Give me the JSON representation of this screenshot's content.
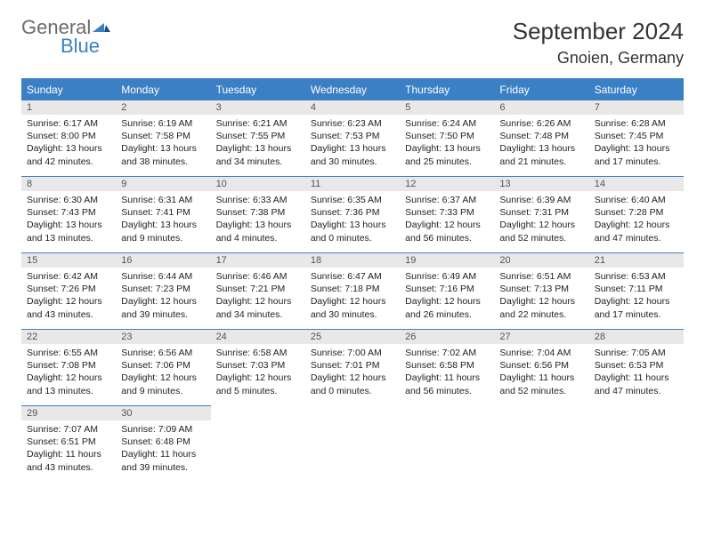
{
  "logo": {
    "general": "General",
    "blue": "Blue"
  },
  "title": "September 2024",
  "location": "Gnoien, Germany",
  "colors": {
    "accent": "#3b7fc4",
    "daynum_bg": "#e8e8e8",
    "text": "#222222"
  },
  "dayHeaders": [
    "Sunday",
    "Monday",
    "Tuesday",
    "Wednesday",
    "Thursday",
    "Friday",
    "Saturday"
  ],
  "days": [
    {
      "n": "1",
      "sunrise": "Sunrise: 6:17 AM",
      "sunset": "Sunset: 8:00 PM",
      "daylight": "Daylight: 13 hours and 42 minutes."
    },
    {
      "n": "2",
      "sunrise": "Sunrise: 6:19 AM",
      "sunset": "Sunset: 7:58 PM",
      "daylight": "Daylight: 13 hours and 38 minutes."
    },
    {
      "n": "3",
      "sunrise": "Sunrise: 6:21 AM",
      "sunset": "Sunset: 7:55 PM",
      "daylight": "Daylight: 13 hours and 34 minutes."
    },
    {
      "n": "4",
      "sunrise": "Sunrise: 6:23 AM",
      "sunset": "Sunset: 7:53 PM",
      "daylight": "Daylight: 13 hours and 30 minutes."
    },
    {
      "n": "5",
      "sunrise": "Sunrise: 6:24 AM",
      "sunset": "Sunset: 7:50 PM",
      "daylight": "Daylight: 13 hours and 25 minutes."
    },
    {
      "n": "6",
      "sunrise": "Sunrise: 6:26 AM",
      "sunset": "Sunset: 7:48 PM",
      "daylight": "Daylight: 13 hours and 21 minutes."
    },
    {
      "n": "7",
      "sunrise": "Sunrise: 6:28 AM",
      "sunset": "Sunset: 7:45 PM",
      "daylight": "Daylight: 13 hours and 17 minutes."
    },
    {
      "n": "8",
      "sunrise": "Sunrise: 6:30 AM",
      "sunset": "Sunset: 7:43 PM",
      "daylight": "Daylight: 13 hours and 13 minutes."
    },
    {
      "n": "9",
      "sunrise": "Sunrise: 6:31 AM",
      "sunset": "Sunset: 7:41 PM",
      "daylight": "Daylight: 13 hours and 9 minutes."
    },
    {
      "n": "10",
      "sunrise": "Sunrise: 6:33 AM",
      "sunset": "Sunset: 7:38 PM",
      "daylight": "Daylight: 13 hours and 4 minutes."
    },
    {
      "n": "11",
      "sunrise": "Sunrise: 6:35 AM",
      "sunset": "Sunset: 7:36 PM",
      "daylight": "Daylight: 13 hours and 0 minutes."
    },
    {
      "n": "12",
      "sunrise": "Sunrise: 6:37 AM",
      "sunset": "Sunset: 7:33 PM",
      "daylight": "Daylight: 12 hours and 56 minutes."
    },
    {
      "n": "13",
      "sunrise": "Sunrise: 6:39 AM",
      "sunset": "Sunset: 7:31 PM",
      "daylight": "Daylight: 12 hours and 52 minutes."
    },
    {
      "n": "14",
      "sunrise": "Sunrise: 6:40 AM",
      "sunset": "Sunset: 7:28 PM",
      "daylight": "Daylight: 12 hours and 47 minutes."
    },
    {
      "n": "15",
      "sunrise": "Sunrise: 6:42 AM",
      "sunset": "Sunset: 7:26 PM",
      "daylight": "Daylight: 12 hours and 43 minutes."
    },
    {
      "n": "16",
      "sunrise": "Sunrise: 6:44 AM",
      "sunset": "Sunset: 7:23 PM",
      "daylight": "Daylight: 12 hours and 39 minutes."
    },
    {
      "n": "17",
      "sunrise": "Sunrise: 6:46 AM",
      "sunset": "Sunset: 7:21 PM",
      "daylight": "Daylight: 12 hours and 34 minutes."
    },
    {
      "n": "18",
      "sunrise": "Sunrise: 6:47 AM",
      "sunset": "Sunset: 7:18 PM",
      "daylight": "Daylight: 12 hours and 30 minutes."
    },
    {
      "n": "19",
      "sunrise": "Sunrise: 6:49 AM",
      "sunset": "Sunset: 7:16 PM",
      "daylight": "Daylight: 12 hours and 26 minutes."
    },
    {
      "n": "20",
      "sunrise": "Sunrise: 6:51 AM",
      "sunset": "Sunset: 7:13 PM",
      "daylight": "Daylight: 12 hours and 22 minutes."
    },
    {
      "n": "21",
      "sunrise": "Sunrise: 6:53 AM",
      "sunset": "Sunset: 7:11 PM",
      "daylight": "Daylight: 12 hours and 17 minutes."
    },
    {
      "n": "22",
      "sunrise": "Sunrise: 6:55 AM",
      "sunset": "Sunset: 7:08 PM",
      "daylight": "Daylight: 12 hours and 13 minutes."
    },
    {
      "n": "23",
      "sunrise": "Sunrise: 6:56 AM",
      "sunset": "Sunset: 7:06 PM",
      "daylight": "Daylight: 12 hours and 9 minutes."
    },
    {
      "n": "24",
      "sunrise": "Sunrise: 6:58 AM",
      "sunset": "Sunset: 7:03 PM",
      "daylight": "Daylight: 12 hours and 5 minutes."
    },
    {
      "n": "25",
      "sunrise": "Sunrise: 7:00 AM",
      "sunset": "Sunset: 7:01 PM",
      "daylight": "Daylight: 12 hours and 0 minutes."
    },
    {
      "n": "26",
      "sunrise": "Sunrise: 7:02 AM",
      "sunset": "Sunset: 6:58 PM",
      "daylight": "Daylight: 11 hours and 56 minutes."
    },
    {
      "n": "27",
      "sunrise": "Sunrise: 7:04 AM",
      "sunset": "Sunset: 6:56 PM",
      "daylight": "Daylight: 11 hours and 52 minutes."
    },
    {
      "n": "28",
      "sunrise": "Sunrise: 7:05 AM",
      "sunset": "Sunset: 6:53 PM",
      "daylight": "Daylight: 11 hours and 47 minutes."
    },
    {
      "n": "29",
      "sunrise": "Sunrise: 7:07 AM",
      "sunset": "Sunset: 6:51 PM",
      "daylight": "Daylight: 11 hours and 43 minutes."
    },
    {
      "n": "30",
      "sunrise": "Sunrise: 7:09 AM",
      "sunset": "Sunset: 6:48 PM",
      "daylight": "Daylight: 11 hours and 39 minutes."
    }
  ]
}
